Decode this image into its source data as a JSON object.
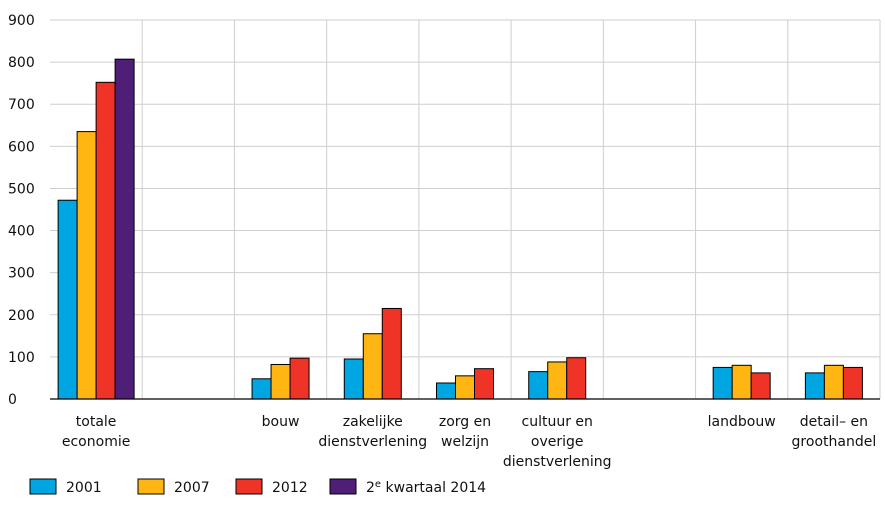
{
  "chart_data": {
    "type": "bar",
    "title": "",
    "xlabel": "",
    "ylabel": "",
    "ylim": [
      0,
      900
    ],
    "yticks": [
      0,
      100,
      200,
      300,
      400,
      500,
      600,
      700,
      800,
      900
    ],
    "grid": true,
    "legend_position": "bottom-left",
    "categories": [
      [
        "totale",
        "economie"
      ],
      [
        ""
      ],
      [
        "bouw"
      ],
      [
        "zakelijke",
        "dienstverlening"
      ],
      [
        "zorg en",
        "welzijn"
      ],
      [
        "cultuur en",
        "overige",
        "dienstverlening"
      ],
      [
        ""
      ],
      [
        "landbouw"
      ],
      [
        "detail– en",
        "groothandel"
      ]
    ],
    "series": [
      {
        "name": "2001",
        "color": "#00a6e2",
        "values": [
          472,
          null,
          48,
          95,
          38,
          65,
          null,
          75,
          62
        ]
      },
      {
        "name": "2007",
        "color": "#ffb612",
        "values": [
          635,
          null,
          82,
          155,
          55,
          88,
          null,
          80,
          80
        ]
      },
      {
        "name": "2012",
        "color": "#ef3327",
        "values": [
          752,
          null,
          97,
          215,
          72,
          98,
          null,
          62,
          75
        ]
      },
      {
        "name": "2e kwartaal 2014",
        "color": "#4f1f78",
        "values": [
          807,
          null,
          null,
          null,
          null,
          null,
          null,
          null,
          null
        ]
      }
    ]
  }
}
